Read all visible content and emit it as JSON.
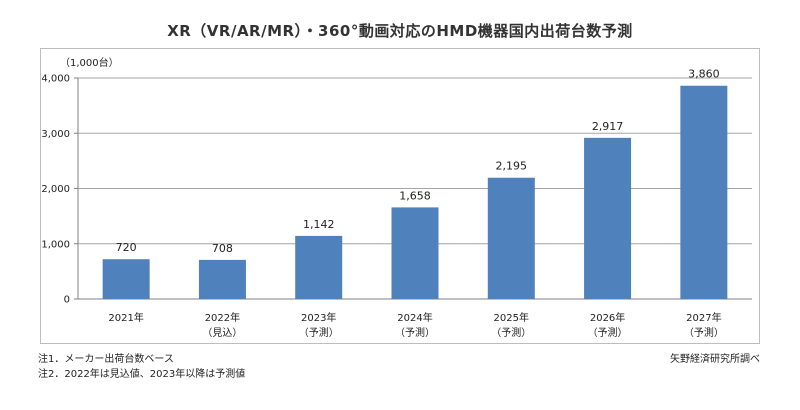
{
  "title": "XR（VR/AR/MR）・360°動画対応のHMD機器国内出荷台数予測",
  "unit_label": "（1,000台）",
  "notes": [
    "注1．メーカー出荷台数ベース",
    "注2．2022年は見込値、2023年以降は予測値"
  ],
  "source": "矢野経済研究所調べ",
  "colors": {
    "bar": "#4f81bd",
    "grid": "#a6a6a6",
    "axis": "#808080"
  },
  "chart_data": {
    "type": "bar",
    "title": "XR（VR/AR/MR）・360°動画対応のHMD機器国内出荷台数予測",
    "ylabel": "（1,000台）",
    "xlabel": "",
    "ylim": [
      0,
      4000
    ],
    "yticks": [
      0,
      1000,
      2000,
      3000,
      4000
    ],
    "ytick_labels": [
      "0",
      "1,000",
      "2,000",
      "3,000",
      "4,000"
    ],
    "categories": [
      "2021年",
      "2022年",
      "2023年",
      "2024年",
      "2025年",
      "2026年",
      "2027年"
    ],
    "category_sublabels": [
      "",
      "（見込）",
      "（予測）",
      "（予測）",
      "（予測）",
      "（予測）",
      "（予測）"
    ],
    "values": [
      720,
      708,
      1142,
      1658,
      2195,
      2917,
      3860
    ],
    "value_labels": [
      "720",
      "708",
      "1,142",
      "1,658",
      "2,195",
      "2,917",
      "3,860"
    ],
    "grid": true,
    "legend": "none"
  }
}
